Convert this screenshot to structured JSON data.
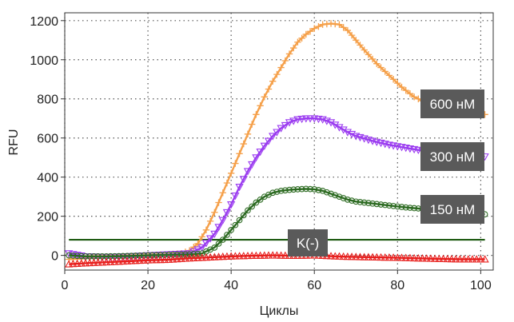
{
  "chart_data": {
    "type": "line",
    "xlabel": "Циклы",
    "ylabel": "RFU",
    "xlim": [
      0,
      103
    ],
    "ylim": [
      -75,
      1240
    ],
    "x_ticks": [
      "0",
      "20",
      "40",
      "60",
      "80",
      "100"
    ],
    "y_ticks": [
      "0",
      "200",
      "400",
      "600",
      "800",
      "1000",
      "1200"
    ],
    "grid": "dotted",
    "threshold": {
      "value": 80,
      "color": "#1e5a12"
    },
    "series": [
      {
        "name": "600 нМ",
        "label": "600 нМ",
        "color": "#f5a04a",
        "marker": "plus",
        "points": [
          [
            1,
            -20
          ],
          [
            5,
            -15
          ],
          [
            10,
            -10
          ],
          [
            15,
            -5
          ],
          [
            20,
            0
          ],
          [
            25,
            5
          ],
          [
            28,
            10
          ],
          [
            30,
            25
          ],
          [
            32,
            60
          ],
          [
            34,
            130
          ],
          [
            36,
            220
          ],
          [
            38,
            320
          ],
          [
            40,
            420
          ],
          [
            42,
            520
          ],
          [
            44,
            620
          ],
          [
            46,
            720
          ],
          [
            48,
            810
          ],
          [
            50,
            890
          ],
          [
            52,
            960
          ],
          [
            54,
            1030
          ],
          [
            56,
            1090
          ],
          [
            58,
            1130
          ],
          [
            60,
            1160
          ],
          [
            62,
            1180
          ],
          [
            64,
            1185
          ],
          [
            66,
            1180
          ],
          [
            68,
            1150
          ],
          [
            70,
            1100
          ],
          [
            72,
            1050
          ],
          [
            75,
            980
          ],
          [
            78,
            920
          ],
          [
            81,
            860
          ],
          [
            84,
            810
          ],
          [
            87,
            780
          ],
          [
            90,
            760
          ],
          [
            95,
            740
          ],
          [
            101,
            720
          ]
        ]
      },
      {
        "name": "300 нМ",
        "label": "300 нМ",
        "color": "#9b3cf0",
        "marker": "triangle-down",
        "points": [
          [
            1,
            10
          ],
          [
            5,
            -5
          ],
          [
            10,
            -8
          ],
          [
            15,
            -5
          ],
          [
            20,
            0
          ],
          [
            25,
            5
          ],
          [
            30,
            10
          ],
          [
            33,
            40
          ],
          [
            36,
            110
          ],
          [
            38,
            180
          ],
          [
            40,
            260
          ],
          [
            42,
            350
          ],
          [
            44,
            430
          ],
          [
            46,
            500
          ],
          [
            48,
            560
          ],
          [
            50,
            610
          ],
          [
            52,
            650
          ],
          [
            54,
            680
          ],
          [
            56,
            695
          ],
          [
            58,
            700
          ],
          [
            60,
            700
          ],
          [
            62,
            695
          ],
          [
            64,
            680
          ],
          [
            66,
            655
          ],
          [
            68,
            630
          ],
          [
            70,
            610
          ],
          [
            74,
            585
          ],
          [
            78,
            565
          ],
          [
            82,
            550
          ],
          [
            86,
            535
          ],
          [
            90,
            525
          ],
          [
            95,
            515
          ],
          [
            101,
            505
          ]
        ]
      },
      {
        "name": "150 нМ",
        "label": "150 нМ",
        "color": "#2d6b22",
        "marker": "circle",
        "points": [
          [
            1,
            0
          ],
          [
            5,
            -5
          ],
          [
            10,
            -5
          ],
          [
            15,
            -3
          ],
          [
            20,
            0
          ],
          [
            25,
            3
          ],
          [
            30,
            5
          ],
          [
            33,
            10
          ],
          [
            36,
            40
          ],
          [
            38,
            80
          ],
          [
            40,
            130
          ],
          [
            42,
            180
          ],
          [
            44,
            230
          ],
          [
            46,
            270
          ],
          [
            48,
            300
          ],
          [
            50,
            320
          ],
          [
            52,
            330
          ],
          [
            54,
            335
          ],
          [
            56,
            338
          ],
          [
            58,
            340
          ],
          [
            60,
            338
          ],
          [
            62,
            330
          ],
          [
            64,
            315
          ],
          [
            66,
            300
          ],
          [
            68,
            285
          ],
          [
            70,
            275
          ],
          [
            74,
            265
          ],
          [
            78,
            255
          ],
          [
            82,
            245
          ],
          [
            86,
            238
          ],
          [
            90,
            230
          ],
          [
            95,
            222
          ],
          [
            101,
            210
          ]
        ]
      },
      {
        "name": "K(-)",
        "label": "K(-)",
        "color": "#e8201e",
        "marker": "triangle-up",
        "points": [
          [
            1,
            -45
          ],
          [
            5,
            -40
          ],
          [
            10,
            -35
          ],
          [
            15,
            -30
          ],
          [
            20,
            -25
          ],
          [
            25,
            -22
          ],
          [
            30,
            -15
          ],
          [
            35,
            -10
          ],
          [
            40,
            -5
          ],
          [
            45,
            -2
          ],
          [
            50,
            0
          ],
          [
            55,
            -2
          ],
          [
            60,
            0
          ],
          [
            65,
            -5
          ],
          [
            70,
            -8
          ],
          [
            75,
            -10
          ],
          [
            80,
            -12
          ],
          [
            85,
            -15
          ],
          [
            90,
            -18
          ],
          [
            95,
            -20
          ],
          [
            101,
            -20
          ]
        ]
      }
    ]
  }
}
